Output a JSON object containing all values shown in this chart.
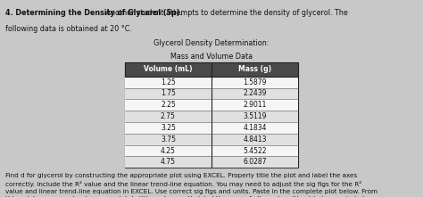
{
  "title_bold": "4. Determining the Density of Glycerol (5p).",
  "title_normal": " Another student attempts to determine the density of glycerol. The",
  "title_line2": "following data is obtained at 20 °C.",
  "table_title1": "Glycerol Density Determination:",
  "table_title2": "Mass and Volume Data",
  "col1_header": "Volume (mL)",
  "col2_header": "Mass (g)",
  "volume": [
    1.25,
    1.75,
    2.25,
    2.75,
    3.25,
    3.75,
    4.25,
    4.75
  ],
  "mass": [
    1.5879,
    2.2439,
    2.9011,
    3.5119,
    4.1834,
    4.8413,
    5.4522,
    6.0287
  ],
  "footer_text": "Find d for glycerol by constructing the appropriate plot using EXCEL. Properly title the plot and label the axes\ncorrectly. Include the R² value and the linear trend-line equation. You may need to adjust the sig figs for the R²\nvalue and linear trend-line equation in EXCEL. Use correct sig figs and units. Paste in the complete plot below. From\nthis point on, remember to appropriately title and correctly label the axes of all graphs without being reminded.",
  "background_color": "#c8c8c8",
  "text_color": "#111111",
  "table_bg": "#f5f5f5",
  "header_bg": "#4a4a4a",
  "header_text": "#ffffff",
  "row_odd_bg": "#e0e0e0",
  "row_even_bg": "#f5f5f5"
}
